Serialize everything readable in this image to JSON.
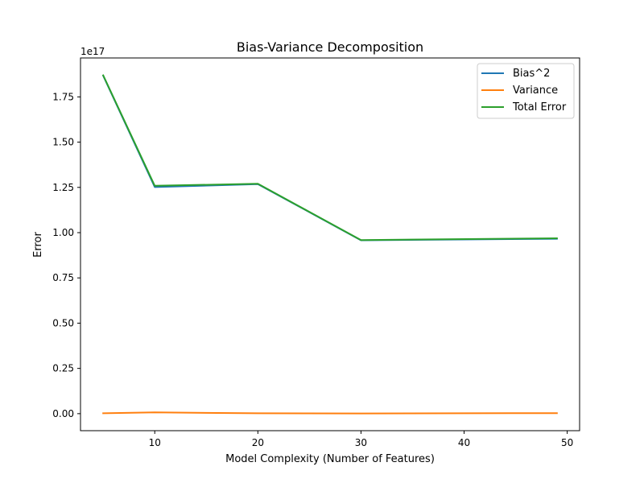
{
  "chart_data": {
    "type": "line",
    "title": "Bias-Variance Decomposition",
    "xlabel": "Model Complexity (Number of Features)",
    "ylabel": "Error",
    "y_offset_label": "1e17",
    "y_scale": 1e+17,
    "xlim": [
      2.8,
      51.2
    ],
    "ylim": [
      -0.094,
      1.965
    ],
    "x_ticks": [
      10,
      20,
      30,
      40,
      50
    ],
    "x_tick_labels": [
      "10",
      "20",
      "30",
      "40",
      "50"
    ],
    "y_ticks": [
      0.0,
      0.25,
      0.5,
      0.75,
      1.0,
      1.25,
      1.5,
      1.75
    ],
    "y_tick_labels": [
      "0.00",
      "0.25",
      "0.50",
      "0.75",
      "1.00",
      "1.25",
      "1.50",
      "1.75"
    ],
    "grid": false,
    "legend_position": "upper-right",
    "x": [
      5,
      10,
      20,
      30,
      49
    ],
    "series": [
      {
        "name": "Bias^2",
        "color": "#1f77b4",
        "values": [
          1.867,
          1.252,
          1.268,
          0.958,
          0.966
        ]
      },
      {
        "name": "Variance",
        "color": "#ff7f0e",
        "values": [
          0.002,
          0.007,
          0.002,
          0.001,
          0.003
        ]
      },
      {
        "name": "Total Error",
        "color": "#2ca02c",
        "values": [
          1.869,
          1.259,
          1.27,
          0.959,
          0.969
        ]
      }
    ]
  }
}
